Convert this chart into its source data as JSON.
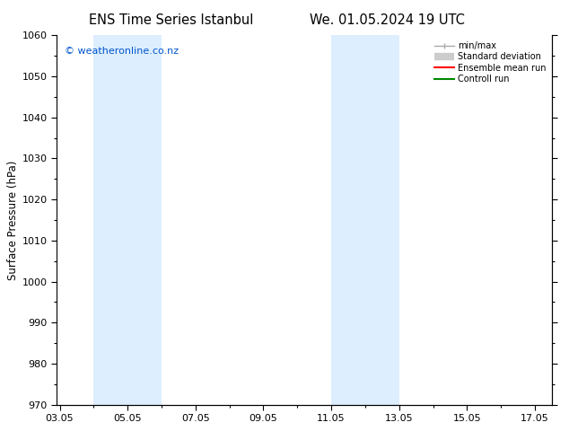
{
  "title_left": "ENS Time Series Istanbul",
  "title_right": "We. 01.05.2024 19 UTC",
  "ylabel": "Surface Pressure (hPa)",
  "ylim": [
    970,
    1060
  ],
  "yticks": [
    970,
    980,
    990,
    1000,
    1010,
    1020,
    1030,
    1040,
    1050,
    1060
  ],
  "xlim": [
    2.917,
    17.5
  ],
  "xtick_labels": [
    "03.05",
    "05.05",
    "07.05",
    "09.05",
    "11.05",
    "13.05",
    "15.05",
    "17.05"
  ],
  "xtick_positions": [
    3,
    5,
    7,
    9,
    11,
    13,
    15,
    17
  ],
  "shaded_bands": [
    {
      "x_start": 4.0,
      "x_end": 6.0,
      "color": "#ddeeff"
    },
    {
      "x_start": 11.0,
      "x_end": 13.0,
      "color": "#ddeeff"
    }
  ],
  "watermark": "© weatheronline.co.nz",
  "watermark_color": "#0055cc",
  "background_color": "#ffffff",
  "legend_labels": [
    "min/max",
    "Standard deviation",
    "Ensemble mean run",
    "Controll run"
  ],
  "legend_colors": [
    "#aaaaaa",
    "#cccccc",
    "#ff0000",
    "#008800"
  ]
}
